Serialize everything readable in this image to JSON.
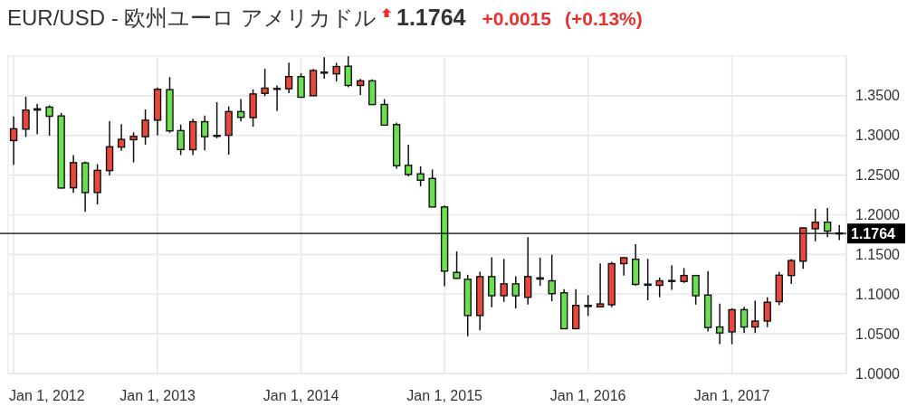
{
  "chart_data": {
    "type": "candlestick",
    "title": "EUR/USD - 欧州ユーロ アメリカドル",
    "annotations": [
      "1.1764",
      "+0.0015",
      "(+0.13%)"
    ],
    "x": [
      "2012-01",
      "2012-02",
      "2012-03",
      "2012-04",
      "2012-05",
      "2012-06",
      "2012-07",
      "2012-08",
      "2012-09",
      "2012-10",
      "2012-11",
      "2012-12",
      "2013-01",
      "2013-02",
      "2013-03",
      "2013-04",
      "2013-05",
      "2013-06",
      "2013-07",
      "2013-08",
      "2013-09",
      "2013-10",
      "2013-11",
      "2013-12",
      "2014-01",
      "2014-02",
      "2014-03",
      "2014-04",
      "2014-05",
      "2014-06",
      "2014-07",
      "2014-08",
      "2014-09",
      "2014-10",
      "2014-11",
      "2014-12",
      "2015-01",
      "2015-02",
      "2015-03",
      "2015-04",
      "2015-05",
      "2015-06",
      "2015-07",
      "2015-08",
      "2015-09",
      "2015-10",
      "2015-11",
      "2015-12",
      "2016-01",
      "2016-02",
      "2016-03",
      "2016-04",
      "2016-05",
      "2016-06",
      "2016-07",
      "2016-08",
      "2016-09",
      "2016-10",
      "2016-11",
      "2016-12",
      "2017-01",
      "2017-02",
      "2017-03",
      "2017-04",
      "2017-05",
      "2017-06",
      "2017-07",
      "2017-08",
      "2017-09",
      "2017-10"
    ],
    "ohlc": [
      [
        1.2935,
        1.3238,
        1.263,
        1.3084
      ],
      [
        1.308,
        1.3488,
        1.298,
        1.3319
      ],
      [
        1.332,
        1.34,
        1.3015,
        1.3335
      ],
      [
        1.3357,
        1.338,
        1.2996,
        1.3242
      ],
      [
        1.3246,
        1.3284,
        1.233,
        1.2337
      ],
      [
        1.234,
        1.2753,
        1.2276,
        1.2657
      ],
      [
        1.2653,
        1.2672,
        1.2037,
        1.228
      ],
      [
        1.228,
        1.2638,
        1.213,
        1.256
      ],
      [
        1.2557,
        1.318,
        1.2495,
        1.2857
      ],
      [
        1.2853,
        1.3142,
        1.2807,
        1.295
      ],
      [
        1.2946,
        1.3038,
        1.266,
        1.2988
      ],
      [
        1.2984,
        1.3327,
        1.2884,
        1.3192
      ],
      [
        1.3192,
        1.3604,
        1.3,
        1.3581
      ],
      [
        1.3577,
        1.3735,
        1.3034,
        1.3057
      ],
      [
        1.3061,
        1.3138,
        1.2753,
        1.2822
      ],
      [
        1.282,
        1.3211,
        1.2753,
        1.3173
      ],
      [
        1.3173,
        1.325,
        1.2811,
        1.2984
      ],
      [
        1.299,
        1.3419,
        1.2965,
        1.3
      ],
      [
        1.3002,
        1.3366,
        1.2757,
        1.33
      ],
      [
        1.33,
        1.3458,
        1.3178,
        1.3228
      ],
      [
        1.3224,
        1.358,
        1.311,
        1.3523
      ],
      [
        1.353,
        1.384,
        1.3496,
        1.3596
      ],
      [
        1.3585,
        1.363,
        1.3309,
        1.3592
      ],
      [
        1.3588,
        1.3917,
        1.3534,
        1.3741
      ],
      [
        1.3741,
        1.3783,
        1.3481,
        1.3481
      ],
      [
        1.35,
        1.3837,
        1.35,
        1.3818
      ],
      [
        1.3798,
        1.3986,
        1.3714,
        1.3785
      ],
      [
        1.3776,
        1.3914,
        1.368,
        1.3868
      ],
      [
        1.3872,
        1.3998,
        1.3607,
        1.363
      ],
      [
        1.363,
        1.3711,
        1.3511,
        1.3688
      ],
      [
        1.3688,
        1.3707,
        1.3389,
        1.3389
      ],
      [
        1.339,
        1.3458,
        1.313,
        1.313
      ],
      [
        1.3136,
        1.3161,
        1.258,
        1.2618
      ],
      [
        1.2623,
        1.2883,
        1.2485,
        1.2508
      ],
      [
        1.2516,
        1.2611,
        1.2359,
        1.2435
      ],
      [
        1.2458,
        1.2571,
        1.2098,
        1.2098
      ],
      [
        1.2098,
        1.2117,
        1.1101,
        1.129
      ],
      [
        1.1274,
        1.1539,
        1.1195,
        1.1199
      ],
      [
        1.1187,
        1.1244,
        1.0469,
        1.073
      ],
      [
        1.073,
        1.1282,
        1.0545,
        1.1221
      ],
      [
        1.1221,
        1.1463,
        1.0836,
        1.098
      ],
      [
        1.098,
        1.1444,
        1.0903,
        1.113
      ],
      [
        1.113,
        1.1225,
        1.082,
        1.098
      ],
      [
        1.096,
        1.1717,
        1.087,
        1.1221
      ],
      [
        1.1205,
        1.146,
        1.1104,
        1.119
      ],
      [
        1.1168,
        1.1497,
        1.091,
        1.1006
      ],
      [
        1.1017,
        1.1062,
        1.0564,
        1.0564
      ],
      [
        1.0564,
        1.1062,
        1.0564,
        1.0858
      ],
      [
        1.0858,
        1.0987,
        1.0726,
        1.0844
      ],
      [
        1.084,
        1.1388,
        1.084,
        1.0877
      ],
      [
        1.0866,
        1.1407,
        1.0835,
        1.1384
      ],
      [
        1.1384,
        1.1462,
        1.1233,
        1.1459
      ],
      [
        1.144,
        1.163,
        1.1104,
        1.1123
      ],
      [
        1.1126,
        1.1444,
        1.0923,
        1.1112
      ],
      [
        1.1111,
        1.121,
        1.096,
        1.1168
      ],
      [
        1.1172,
        1.1366,
        1.1055,
        1.116
      ],
      [
        1.116,
        1.1329,
        1.1141,
        1.1235
      ],
      [
        1.1235,
        1.124,
        1.0868,
        1.098
      ],
      [
        1.0988,
        1.1291,
        1.053,
        1.0579
      ],
      [
        1.0586,
        1.0879,
        1.0369,
        1.0511
      ],
      [
        1.0525,
        1.0823,
        1.0369,
        1.0804
      ],
      [
        1.0804,
        1.0841,
        1.0511,
        1.0586
      ],
      [
        1.0586,
        1.0916,
        1.0511,
        1.0661
      ],
      [
        1.0661,
        1.0961,
        1.0584,
        1.0898
      ],
      [
        1.0905,
        1.128,
        1.0861,
        1.1239
      ],
      [
        1.1235,
        1.1441,
        1.1128,
        1.1423
      ],
      [
        1.1415,
        1.184,
        1.1318,
        1.1835
      ],
      [
        1.1824,
        1.2075,
        1.1666,
        1.1906
      ],
      [
        1.1906,
        1.2086,
        1.1719,
        1.1794
      ],
      [
        1.177,
        1.1873,
        1.1681,
        1.1764
      ]
    ],
    "colors": [
      "#e8473b",
      "#e8473b",
      "#e8473b",
      "#6be04e",
      "#6be04e",
      "#e8473b",
      "#6be04e",
      "#e8473b",
      "#e8473b",
      "#e8473b",
      "#e8473b",
      "#e8473b",
      "#e8473b",
      "#6be04e",
      "#6be04e",
      "#e8473b",
      "#6be04e",
      "#e8473b",
      "#e8473b",
      "#6be04e",
      "#e8473b",
      "#e8473b",
      "#e8473b",
      "#e8473b",
      "#6be04e",
      "#e8473b",
      "#6be04e",
      "#e8473b",
      "#6be04e",
      "#e8473b",
      "#6be04e",
      "#6be04e",
      "#6be04e",
      "#6be04e",
      "#6be04e",
      "#6be04e",
      "#6be04e",
      "#6be04e",
      "#6be04e",
      "#e8473b",
      "#6be04e",
      "#e8473b",
      "#6be04e",
      "#e8473b",
      "#6be04e",
      "#6be04e",
      "#6be04e",
      "#e8473b",
      "#6be04e",
      "#e8473b",
      "#e8473b",
      "#e8473b",
      "#6be04e",
      "#6be04e",
      "#e8473b",
      "#6be04e",
      "#e8473b",
      "#6be04e",
      "#6be04e",
      "#6be04e",
      "#e8473b",
      "#6be04e",
      "#e8473b",
      "#e8473b",
      "#e8473b",
      "#e8473b",
      "#e8473b",
      "#e8473b",
      "#6be04e",
      "#6be04e"
    ],
    "xlim": [
      "2011-12-18",
      "2017-10-19"
    ],
    "xticks": [
      {
        "value": "2012-01",
        "label": "Jan 1, 2012"
      },
      {
        "value": "2013-01",
        "label": "Jan 1, 2013"
      },
      {
        "value": "2014-01",
        "label": "Jan 1, 2014"
      },
      {
        "value": "2015-01",
        "label": "Jan 1, 2015"
      },
      {
        "value": "2016-01",
        "label": "Jan 1, 2016"
      },
      {
        "value": "2017-01",
        "label": "Jan 1, 2017"
      }
    ],
    "ylim": [
      1.0,
      1.4
    ],
    "yticks": [
      {
        "value": 1.0,
        "label": "1.0000"
      },
      {
        "value": 1.05,
        "label": "1.0500"
      },
      {
        "value": 1.1,
        "label": "1.1000"
      },
      {
        "value": 1.15,
        "label": "1.1500"
      },
      {
        "value": 1.2,
        "label": "1.2000"
      },
      {
        "value": 1.25,
        "label": "1.2500"
      },
      {
        "value": 1.3,
        "label": "1.3000"
      },
      {
        "value": 1.35,
        "label": "1.3500"
      }
    ],
    "grid": true,
    "ref_lines": [
      {
        "axis": "y",
        "value": 1.1764,
        "label": "1.1764",
        "color": "#000000"
      }
    ]
  }
}
